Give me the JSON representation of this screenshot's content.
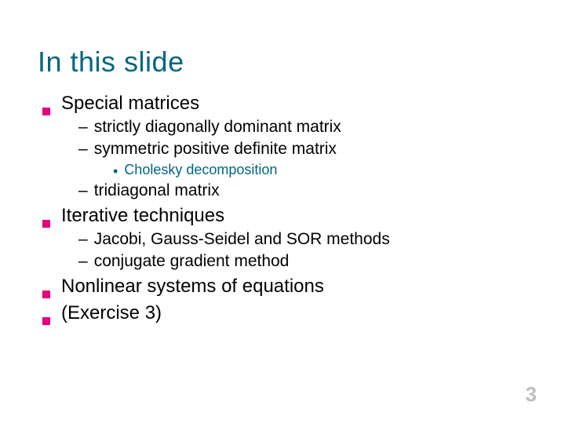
{
  "colors": {
    "title": "#006680",
    "bullet_square": "#e6007e",
    "body_text": "#000000",
    "sub_accent": "#006680",
    "pagenum": "#bfbfbf",
    "background": "#ffffff"
  },
  "typography": {
    "title_fontsize": 36,
    "lvl1_fontsize": 24,
    "lvl2_fontsize": 21,
    "lvl3_fontsize": 18,
    "pagenum_fontsize": 26,
    "font_family": "Verdana"
  },
  "title": "In this slide",
  "items": {
    "b0": "Special matrices",
    "b0_s0": "strictly diagonally dominant matrix",
    "b0_s1": "symmetric positive definite matrix",
    "b0_s1_c0": "Cholesky decomposition",
    "b0_s2": "tridiagonal matrix",
    "b1": "Iterative techniques",
    "b1_s0": "Jacobi, Gauss-Seidel and SOR methods",
    "b1_s1": "conjugate gradient method",
    "b2": "Nonlinear systems of equations",
    "b3": "(Exercise 3)"
  },
  "page_number": "3"
}
